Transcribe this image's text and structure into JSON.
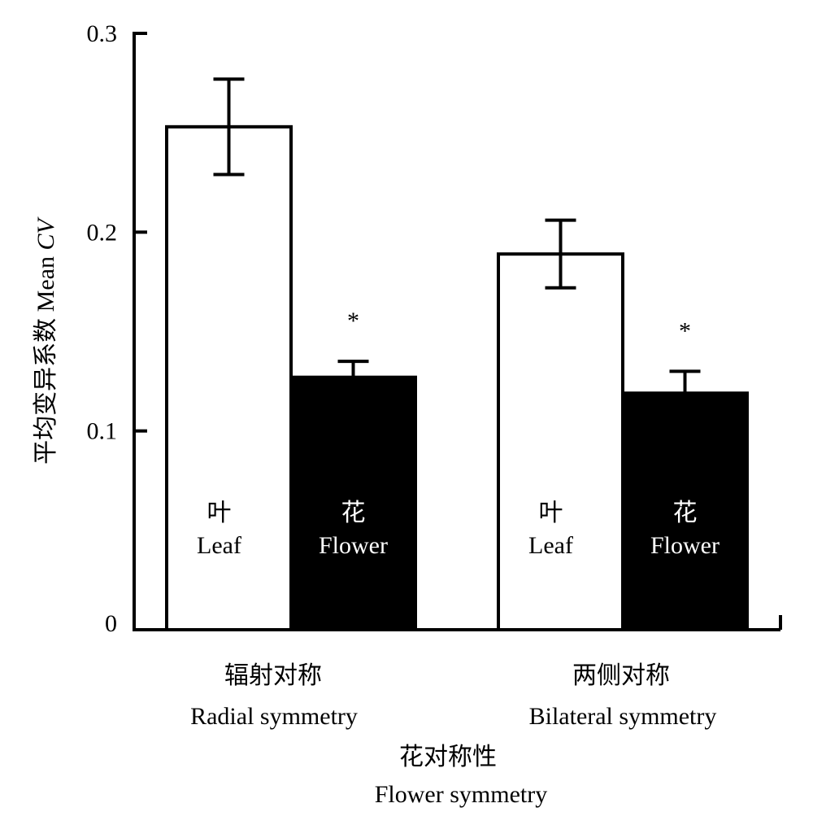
{
  "chart_data": {
    "type": "bar",
    "ylabel_cn": "平均变异系数",
    "ylabel_en_prefix": "Mean",
    "ylabel_en_italic": "CV",
    "xlabel_cn": "花对称性",
    "xlabel_en": "Flower symmetry",
    "ylim": [
      0,
      0.3
    ],
    "yticks": [
      "0",
      "0.1",
      "0.2",
      "0.3"
    ],
    "ytick_values": [
      0,
      0.1,
      0.2,
      0.3
    ],
    "groups": [
      {
        "label_cn": "辐射对称",
        "label_en": "Radial symmetry"
      },
      {
        "label_cn": "两侧对称",
        "label_en": "Bilateral symmetry"
      }
    ],
    "series": [
      {
        "label_cn": "叶",
        "label_en": "Leaf",
        "color": "#ffffff",
        "text_color": "#000000",
        "values": [
          0.253,
          0.189
        ],
        "errors": [
          0.024,
          0.017
        ]
      },
      {
        "label_cn": "花",
        "label_en": "Flower",
        "color": "#000000",
        "text_color": "#ffffff",
        "values": [
          0.127,
          0.119
        ],
        "errors": [
          0.008,
          0.011
        ]
      }
    ],
    "significance_marks": [
      "*",
      "*"
    ]
  }
}
